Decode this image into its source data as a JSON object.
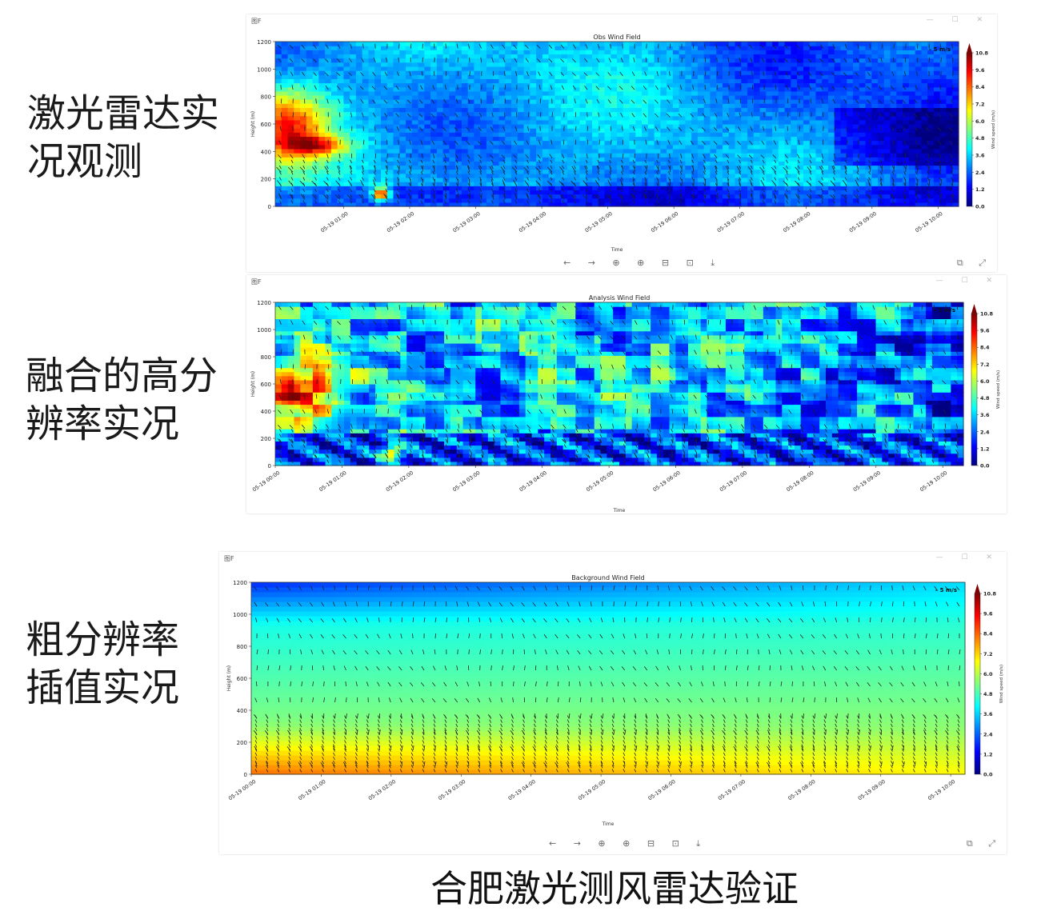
{
  "labels": {
    "obs": "激光雷达实\n况观测",
    "analysis": "融合的高分\n辨率实况",
    "background": "粗分辨率\n插值实况",
    "bottom_title": "合肥激光测风雷达验证"
  },
  "window": {
    "title_glyph": "图F",
    "controls": "— ☐ ✕",
    "toolbar": "← → ⊕ ⊕ ⊟ ⊡ ⤓",
    "corner": "⧉ ⤢"
  },
  "colorbar": {
    "ticks": [
      "10.8",
      "9.6",
      "8.4",
      "7.2",
      "6.0",
      "4.8",
      "3.6",
      "2.4",
      "1.2",
      "0.0"
    ],
    "label": "Wind speed (m/s)",
    "stops": [
      "#00007f",
      "#0000ff",
      "#007fff",
      "#00ffff",
      "#7fff7f",
      "#ffff00",
      "#ff7f00",
      "#ff0000",
      "#7f0000"
    ]
  },
  "chart_data": [
    {
      "type": "heatmap",
      "title": "Obs Wind Field",
      "xlabel": "Time",
      "ylabel": "Height (m)",
      "ylim": [
        0,
        1200
      ],
      "yticks": [
        "0",
        "200",
        "400",
        "600",
        "800",
        "1000",
        "1200"
      ],
      "xticks": [
        "05-19 01:00",
        "05-19 02:00",
        "05-19 03:00",
        "05-19 04:00",
        "05-19 05:00",
        "05-19 06:00",
        "05-19 07:00",
        "05-19 08:00",
        "05-19 09:00",
        "05-19 10:00"
      ],
      "scale_label": "5 m/s",
      "value_range": [
        0,
        10.8
      ],
      "field": "obs"
    },
    {
      "type": "heatmap",
      "title": "Analysis Wind Field",
      "xlabel": "Time",
      "ylabel": "Height (m)",
      "ylim": [
        0,
        1200
      ],
      "yticks": [
        "0",
        "200",
        "400",
        "600",
        "800",
        "1000",
        "1200"
      ],
      "xticks": [
        "05-19 00:00",
        "05-19 01:00",
        "05-19 02:00",
        "05-19 03:00",
        "05-19 04:00",
        "05-19 05:00",
        "05-19 06:00",
        "05-19 07:00",
        "05-19 08:00",
        "05-19 09:00",
        "05-19 10:00"
      ],
      "scale_label": "5 m/s",
      "value_range": [
        0,
        10.8
      ],
      "field": "analysis"
    },
    {
      "type": "heatmap",
      "title": "Background Wind Field",
      "xlabel": "Time",
      "ylabel": "Height (m)",
      "ylim": [
        0,
        1200
      ],
      "yticks": [
        "0",
        "200",
        "400",
        "600",
        "800",
        "1000",
        "1200"
      ],
      "xticks": [
        "05-19 00:00",
        "05-19 01:00",
        "05-19 02:00",
        "05-19 03:00",
        "05-19 04:00",
        "05-19 05:00",
        "05-19 06:00",
        "05-19 07:00",
        "05-19 08:00",
        "05-19 09:00",
        "05-19 10:00"
      ],
      "scale_label": "5 m/s",
      "value_range": [
        0,
        10.8
      ],
      "field": "background"
    }
  ]
}
